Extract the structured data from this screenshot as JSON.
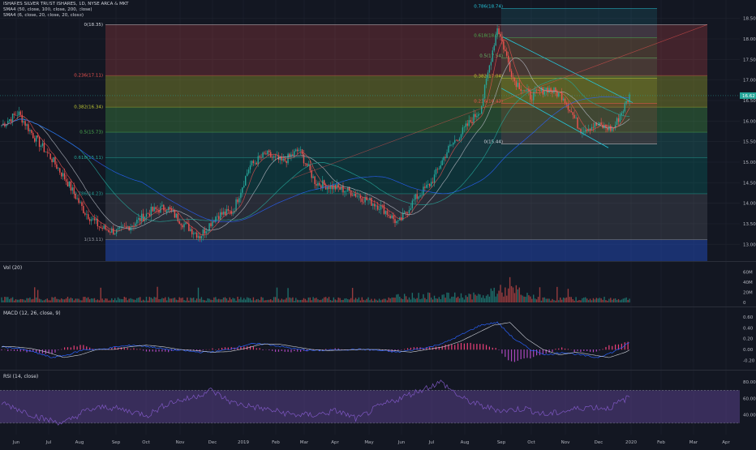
{
  "legend": {
    "title": "ISHARES SILVER TRUST ISHARES, 1D, NYSE ARCA & MKT",
    "sma1": "SMA4 (50, close, 100, close, 200, close)",
    "sma2": "SMA4 (6, close, 20, close, 20, close)"
  },
  "last_price": "16.62",
  "panes": {
    "vol": "Vol (20)",
    "macd": "MACD (12, 26, close, 9)",
    "rsi": "RSI (14, close)"
  },
  "price_axis": [
    "18.50",
    "18.00",
    "17.50",
    "17.00",
    "16.50",
    "16.00",
    "15.50",
    "15.00",
    "14.50",
    "14.00",
    "13.50",
    "13.00"
  ],
  "vol_axis": [
    "60M",
    "40M",
    "20M",
    "0"
  ],
  "macd_axis": [
    "0.60",
    "0.40",
    "0.20",
    "0.00",
    "-0.20"
  ],
  "rsi_axis": [
    "80.00",
    "60.00",
    "40.00"
  ],
  "time_axis": [
    "Jun",
    "Jul",
    "Aug",
    "Sep",
    "Oct",
    "Nov",
    "Dec",
    "2019",
    "Feb",
    "Mar",
    "Apr",
    "May",
    "Jun",
    "Jul",
    "Aug",
    "Sep",
    "Oct",
    "Nov",
    "Dec",
    "2020",
    "Feb",
    "Mar",
    "Apr"
  ],
  "fib_left": [
    {
      "label": "0(18.35)",
      "color": "#d1d4dc"
    },
    {
      "label": "0.236(17.11)",
      "color": "#ef5350"
    },
    {
      "label": "0.382(16.34)",
      "color": "#c0ca33"
    },
    {
      "label": "0.5(15.73)",
      "color": "#4caf50"
    },
    {
      "label": "0.618(15.11)",
      "color": "#26a69a"
    },
    {
      "label": "0.786(14.23)",
      "color": "#26a69a"
    },
    {
      "label": "1(13.11)",
      "color": "#9598a1"
    }
  ],
  "fib_right": [
    {
      "label": "0.786(18.74)",
      "color": "#26c6da"
    },
    {
      "label": "0.618(18.03)",
      "color": "#4caf50"
    },
    {
      "label": "0.5(17.54)",
      "color": "#66bb6a"
    },
    {
      "label": "0.382(17.04)",
      "color": "#c0ca33"
    },
    {
      "label": "0.236(16.43)",
      "color": "#ef5350"
    },
    {
      "label": "0(15.44)",
      "color": "#d1d4dc"
    }
  ],
  "chart_data": {
    "type": "candlestick",
    "y_range": [
      12.65,
      18.85
    ],
    "x_range_label": [
      "Jun 2018",
      "Apr 2020"
    ],
    "close_waypoints": [
      {
        "x": "Jun",
        "y": 15.9
      },
      {
        "x": "Jun",
        "y": 16.2
      },
      {
        "x": "Jul",
        "y": 15.6
      },
      {
        "x": "Jul",
        "y": 15.1
      },
      {
        "x": "Aug",
        "y": 14.5
      },
      {
        "x": "Aug",
        "y": 13.8
      },
      {
        "x": "Aug",
        "y": 13.4
      },
      {
        "x": "Sep",
        "y": 13.3
      },
      {
        "x": "Sep",
        "y": 13.5
      },
      {
        "x": "Oct",
        "y": 13.8
      },
      {
        "x": "Oct",
        "y": 13.9
      },
      {
        "x": "Nov",
        "y": 13.5
      },
      {
        "x": "Nov",
        "y": 13.2
      },
      {
        "x": "Dec",
        "y": 13.7
      },
      {
        "x": "Dec",
        "y": 13.8
      },
      {
        "x": "2019",
        "y": 14.9
      },
      {
        "x": "2019",
        "y": 15.2
      },
      {
        "x": "Feb",
        "y": 15.0
      },
      {
        "x": "Feb",
        "y": 15.3
      },
      {
        "x": "Mar",
        "y": 14.5
      },
      {
        "x": "Mar",
        "y": 14.4
      },
      {
        "x": "Apr",
        "y": 14.3
      },
      {
        "x": "Apr",
        "y": 14.1
      },
      {
        "x": "May",
        "y": 13.9
      },
      {
        "x": "Jun",
        "y": 13.5
      },
      {
        "x": "Jun",
        "y": 14.1
      },
      {
        "x": "Jul",
        "y": 14.5
      },
      {
        "x": "Jul",
        "y": 15.3
      },
      {
        "x": "Aug",
        "y": 15.8
      },
      {
        "x": "Aug",
        "y": 16.3
      },
      {
        "x": "Sep",
        "y": 18.3
      },
      {
        "x": "Sep",
        "y": 17.0
      },
      {
        "x": "Oct",
        "y": 16.6
      },
      {
        "x": "Oct",
        "y": 16.8
      },
      {
        "x": "Nov",
        "y": 16.6
      },
      {
        "x": "Nov",
        "y": 15.8
      },
      {
        "x": "Dec",
        "y": 15.9
      },
      {
        "x": "Dec",
        "y": 15.8
      },
      {
        "x": "2020",
        "y": 16.6
      }
    ],
    "macd_waypoints": [
      0.05,
      0.02,
      -0.05,
      -0.15,
      -0.1,
      0.0,
      0.0,
      0.05,
      0.08,
      0.05,
      0.0,
      -0.02,
      -0.05,
      -0.04,
      0.02,
      0.1,
      0.1,
      0.05,
      0.0,
      -0.02,
      -0.01,
      0.0,
      0.0,
      -0.02,
      -0.05,
      0.0,
      0.05,
      0.15,
      0.3,
      0.45,
      0.5,
      0.2,
      0.0,
      -0.1,
      -0.05,
      -0.1,
      -0.15,
      -0.05,
      0.12
    ],
    "rsi_waypoints": [
      55,
      45,
      35,
      30,
      45,
      50,
      45,
      40,
      55,
      60,
      70,
      55,
      50,
      45,
      40,
      40,
      45,
      35,
      50,
      60,
      70,
      80,
      60,
      50,
      45,
      48,
      40,
      45,
      50,
      48,
      62
    ],
    "rsi_range": [
      20,
      90
    ],
    "series": [
      {
        "name": "SMA 50",
        "color": "#b2b5be"
      },
      {
        "name": "SMA 100",
        "color": "#26a69a"
      },
      {
        "name": "SMA 200",
        "color": "#2962ff"
      }
    ]
  },
  "colors": {
    "up": "#26a69a",
    "down": "#ef5350",
    "bg": "#131722",
    "grid": "#1e222d"
  }
}
